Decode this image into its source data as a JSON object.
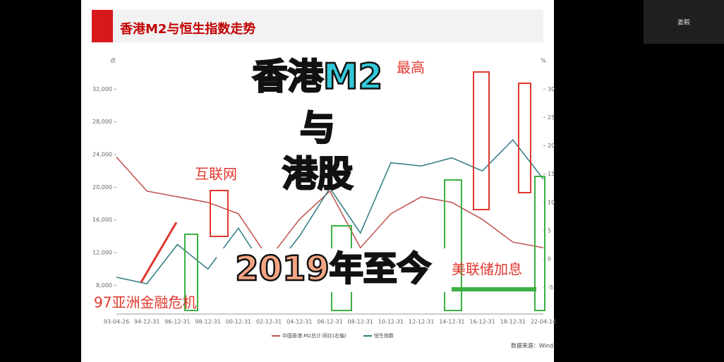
{
  "presenter": "姜毅",
  "chart_data": {
    "type": "line",
    "title": "香港M2与恒生指数走势",
    "y_unit": "点",
    "y2_unit": "%",
    "source": "数据来源：Wind",
    "categories": [
      "93-04-26",
      "94-12-31",
      "96-12-31",
      "98-12-31",
      "00-12-31",
      "02-12-31",
      "04-12-31",
      "06-12-31",
      "08-12-31",
      "10-12-31",
      "12-12-31",
      "14-12-31",
      "16-12-31",
      "18-12-31",
      "22-04-14"
    ],
    "series": [
      {
        "name": "中国香港:M2总计:同比(右轴)",
        "color": "#c0504d",
        "axis": "y2",
        "values": [
          18,
          12,
          11,
          10,
          8,
          0,
          7,
          12,
          2,
          8,
          11,
          10,
          7,
          3,
          2
        ]
      },
      {
        "name": "恒生指数",
        "color": "#2e7d82",
        "values": [
          9000,
          8200,
          13000,
          10000,
          15000,
          9300,
          14000,
          19900,
          14400,
          23000,
          22600,
          23600,
          22000,
          25800,
          21000
        ]
      }
    ],
    "ylim": [
      4500,
      34700
    ],
    "yticks": [
      {
        "value": 8000,
        "label": "8,000"
      },
      {
        "value": 12000,
        "label": "12,000"
      },
      {
        "value": 16000,
        "label": "16,000"
      },
      {
        "value": 20000,
        "label": "20,000"
      },
      {
        "value": 24000,
        "label": "24,000"
      },
      {
        "value": 28000,
        "label": "28,000"
      },
      {
        "value": 32000,
        "label": "32,000"
      }
    ],
    "y2lim": [
      -9.7,
      33.9
    ],
    "y2ticks": [
      -5,
      0,
      5,
      10,
      15,
      20,
      25,
      30
    ],
    "annotations": [
      "香港M2",
      "与",
      "港股",
      "2019年至今",
      "97亚洲金融危机",
      "互联网",
      "最高",
      "美联储加息"
    ]
  }
}
